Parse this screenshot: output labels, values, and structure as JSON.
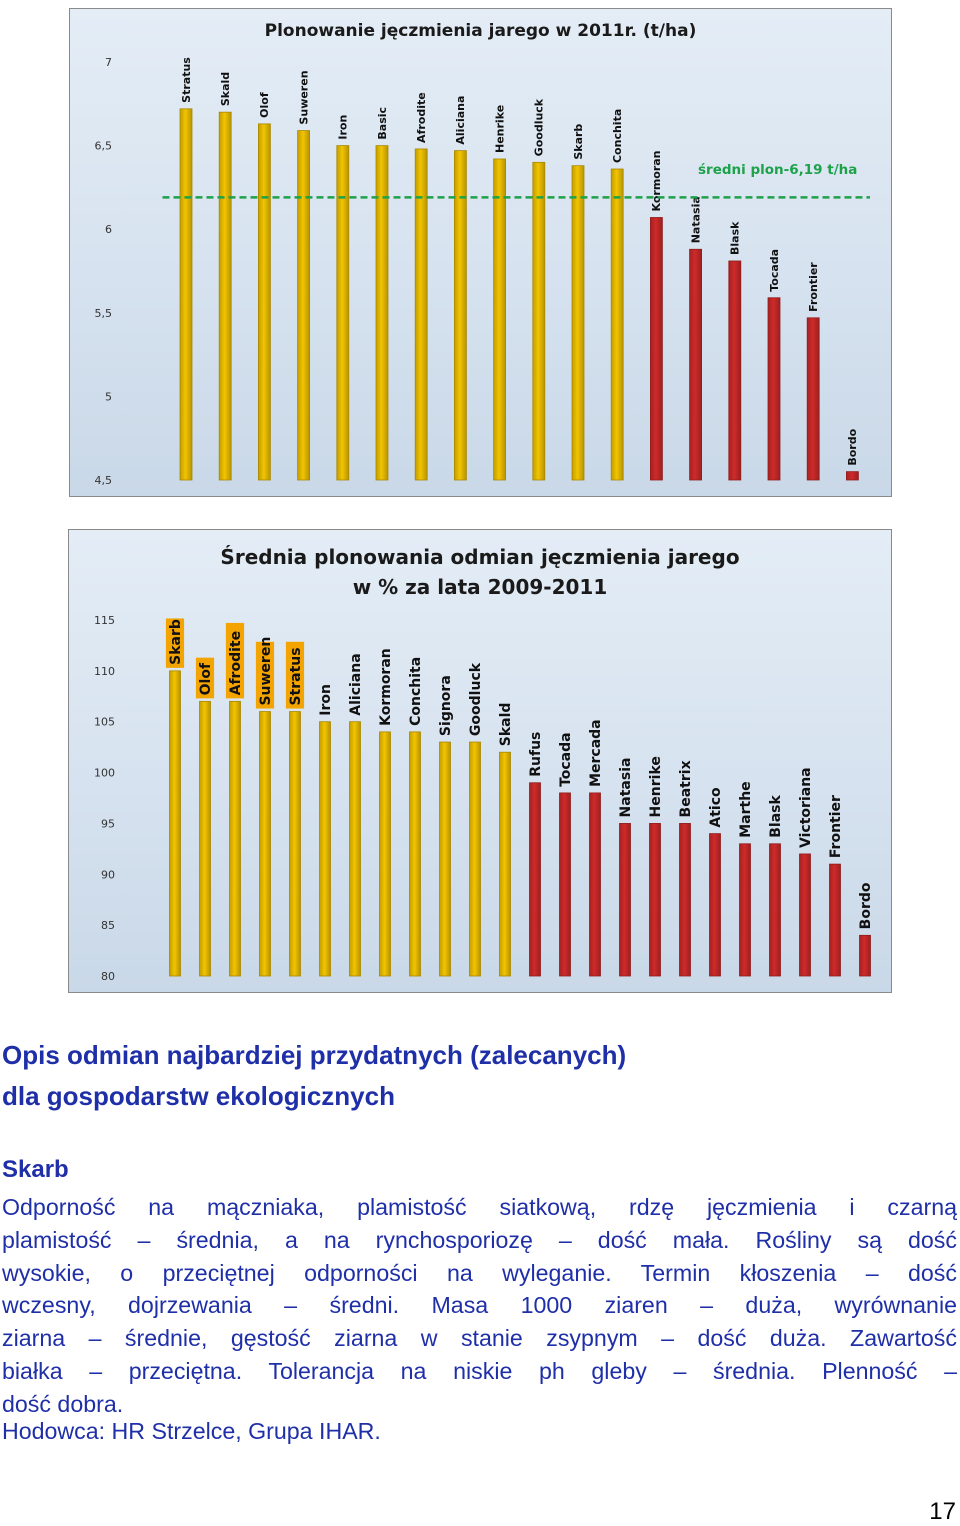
{
  "chart_data": [
    {
      "type": "bar",
      "title": "Plonowanie jęczmienia jarego w 2011r. (t/ha)",
      "categories": [
        "Stratus",
        "Skald",
        "Olof",
        "Suweren",
        "Iron",
        "Basic",
        "Afrodite",
        "Aliciana",
        "Henrike",
        "Goodluck",
        "Skarb",
        "Conchita",
        "Kormoran",
        "Natasia",
        "Blask",
        "Tocada",
        "Frontier",
        "Bordo"
      ],
      "values": [
        6.72,
        6.7,
        6.63,
        6.59,
        6.5,
        6.5,
        6.48,
        6.47,
        6.42,
        6.4,
        6.38,
        6.36,
        6.07,
        5.88,
        5.81,
        5.59,
        5.47,
        4.55
      ],
      "bar_colors": [
        "#f2c400",
        "#f2c400",
        "#f2c400",
        "#f2c400",
        "#f2c400",
        "#f2c400",
        "#f2c400",
        "#f2c400",
        "#f2c400",
        "#f2c400",
        "#f2c400",
        "#f2c400",
        "#cf2a2a",
        "#cf2a2a",
        "#cf2a2a",
        "#cf2a2a",
        "#cf2a2a",
        "#cf2a2a"
      ],
      "ylim": [
        4.5,
        7
      ],
      "yticks": [
        "4,5",
        "5",
        "5,5",
        "6",
        "6,5",
        "7"
      ],
      "reference_line": {
        "value": 6.19,
        "label": "średni plon-6,19 t/ha",
        "color": "#1da24a"
      },
      "grid": false
    },
    {
      "type": "bar",
      "title_lines": [
        "Średnia plonowania odmian jęczmienia jarego",
        "w % za lata 2009-2011"
      ],
      "categories": [
        "Skarb",
        "Olof",
        "Afrodite",
        "Suweren",
        "Stratus",
        "Iron",
        "Aliciana",
        "Kormoran",
        "Conchita",
        "Signora",
        "Goodluck",
        "Skald",
        "Rufus",
        "Tocada",
        "Mercada",
        "Natasia",
        "Henrike",
        "Beatrix",
        "Atico",
        "Marthe",
        "Blask",
        "Victoriana",
        "Frontier",
        "Bordo"
      ],
      "values": [
        110,
        107,
        107,
        106,
        106,
        105,
        105,
        104,
        104,
        103,
        103,
        102,
        99,
        98,
        98,
        95,
        95,
        95,
        94,
        93,
        93,
        92,
        91,
        84
      ],
      "bar_colors": [
        "#f2c400",
        "#f2c400",
        "#f2c400",
        "#f2c400",
        "#f2c400",
        "#f2c400",
        "#f2c400",
        "#f2c400",
        "#f2c400",
        "#f2c400",
        "#f2c400",
        "#f2c400",
        "#cf2a2a",
        "#cf2a2a",
        "#cf2a2a",
        "#cf2a2a",
        "#cf2a2a",
        "#cf2a2a",
        "#cf2a2a",
        "#cf2a2a",
        "#cf2a2a",
        "#cf2a2a",
        "#cf2a2a",
        "#cf2a2a"
      ],
      "highlighted": [
        "Skarb",
        "Olof",
        "Afrodite",
        "Suweren",
        "Stratus"
      ],
      "ylim": [
        80,
        115
      ],
      "yticks": [
        "80",
        "85",
        "90",
        "95",
        "100",
        "105",
        "110",
        "115"
      ],
      "grid": false
    }
  ],
  "section": {
    "heading_line1": "Opis odmian najbardziej przydatnych (zalecanych)",
    "heading_line2": "dla gospodarstw ekologicznych"
  },
  "variety": {
    "name": "Skarb",
    "lines": [
      "Odporność na mączniaka, plamistość siatkową, rdzę jęczmienia i czarną",
      "plamistość – średnia, a na rynchosporiozę – dość mała. Rośliny są dość",
      "wysokie, o przeciętnej odporności na wyleganie. Termin kłoszenia – dość",
      "wczesny, dojrzewania – średni. Masa 1000 ziaren – duża, wyrównanie",
      "ziarna – średnie, gęstość ziarna w stanie zsypnym – dość duża. Zawartość",
      "białka – przeciętna. Tolerancja na niskie ph gleby – średnia. Plenność –",
      "dość dobra."
    ],
    "breeder": "Hodowca: HR Strzelce, Grupa IHAR."
  },
  "page_number": "17"
}
